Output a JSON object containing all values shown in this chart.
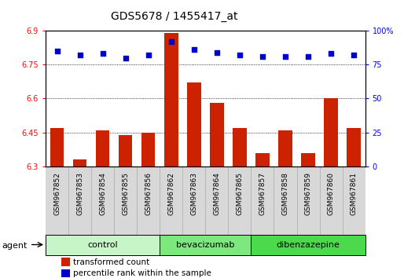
{
  "title": "GDS5678 / 1455417_at",
  "samples": [
    "GSM967852",
    "GSM967853",
    "GSM967854",
    "GSM967855",
    "GSM967856",
    "GSM967862",
    "GSM967863",
    "GSM967864",
    "GSM967865",
    "GSM967857",
    "GSM967858",
    "GSM967859",
    "GSM967860",
    "GSM967861"
  ],
  "transformed_count": [
    6.47,
    6.33,
    6.46,
    6.44,
    6.45,
    6.89,
    6.67,
    6.58,
    6.47,
    6.36,
    6.46,
    6.36,
    6.6,
    6.47
  ],
  "percentile_rank": [
    85,
    82,
    83,
    80,
    82,
    92,
    86,
    84,
    82,
    81,
    81,
    81,
    83,
    82
  ],
  "groups": [
    {
      "label": "control",
      "start": 0,
      "end": 5,
      "color": "#c8f5c8"
    },
    {
      "label": "bevacizumab",
      "start": 5,
      "end": 9,
      "color": "#7de87d"
    },
    {
      "label": "dibenzazepine",
      "start": 9,
      "end": 14,
      "color": "#4cd94c"
    }
  ],
  "ylim_left": [
    6.3,
    6.9
  ],
  "ylim_right": [
    0,
    100
  ],
  "yticks_left": [
    6.3,
    6.45,
    6.6,
    6.75,
    6.9
  ],
  "yticks_right": [
    0,
    25,
    50,
    75,
    100
  ],
  "bar_color": "#cc2200",
  "dot_color": "#0000cc",
  "bar_width": 0.6,
  "plot_bg": "#ffffff",
  "xtick_bg": "#d8d8d8",
  "agent_label": "agent",
  "legend_bar": "transformed count",
  "legend_dot": "percentile rank within the sample",
  "title_fontsize": 10,
  "tick_fontsize": 7,
  "label_fontsize": 8,
  "group_fontsize": 8
}
